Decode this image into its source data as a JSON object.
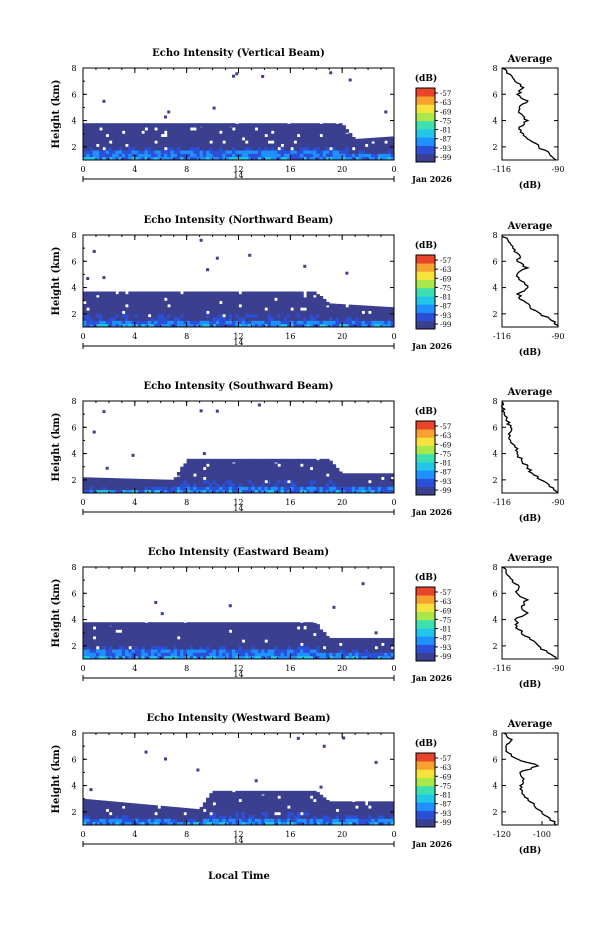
{
  "common": {
    "ylabel": "Height (km)",
    "xlabel": "Local Time",
    "date_label": "Jan 2026",
    "day_label": "14",
    "xticks": [
      "0",
      "4",
      "8",
      "12",
      "16",
      "20",
      "0"
    ],
    "yticks": [
      "2",
      "4",
      "6",
      "8"
    ],
    "colorbar_unit": "(dB)",
    "colorbar_ticks": [
      "-57",
      "-63",
      "-69",
      "-75",
      "-81",
      "-87",
      "-93",
      "-99"
    ],
    "avg_title": "Average",
    "avg_xlabel": "(dB)"
  },
  "colors": {
    "scale": [
      "#3b3f8f",
      "#2b4fd6",
      "#1e90ff",
      "#22c7e8",
      "#3fe0b0",
      "#a8e84a",
      "#f5e23a",
      "#f7a12e",
      "#e8452a"
    ],
    "background": "#ffffff",
    "line": "#000000"
  },
  "chart_data": [
    {
      "type": "heatmap",
      "title": "Echo Intensity (Vertical Beam)",
      "xlim": [
        0,
        24
      ],
      "ylim": [
        1,
        8
      ],
      "layer_top_km": [
        [
          0,
          3.8
        ],
        [
          20,
          3.8
        ],
        [
          21,
          2.6
        ],
        [
          24,
          2.8
        ]
      ],
      "avg_profile": {
        "title": "Average",
        "xticks": [
          "-116",
          "-90"
        ],
        "xlim": [
          -116,
          -90
        ],
        "ylim": [
          1,
          8
        ],
        "height_km": [
          1.0,
          1.5,
          2.0,
          2.5,
          3.0,
          3.5,
          4.0,
          4.5,
          5.0,
          5.5,
          6.0,
          6.5,
          7.0,
          7.5,
          8.0
        ],
        "db": [
          -91,
          -94,
          -99,
          -103,
          -106,
          -108,
          -104,
          -107,
          -108,
          -104,
          -109,
          -106,
          -110,
          -112,
          -116
        ]
      }
    },
    {
      "type": "heatmap",
      "title": "Echo Intensity (Northward Beam)",
      "xlim": [
        0,
        24
      ],
      "ylim": [
        1,
        8
      ],
      "layer_top_km": [
        [
          0,
          3.7
        ],
        [
          18,
          3.7
        ],
        [
          19,
          2.8
        ],
        [
          24,
          2.5
        ]
      ],
      "avg_profile": {
        "title": "Average",
        "xticks": [
          "-116",
          "-90"
        ],
        "xlim": [
          -116,
          -90
        ],
        "ylim": [
          1,
          8
        ],
        "height_km": [
          1.0,
          1.5,
          2.0,
          2.5,
          3.0,
          3.5,
          4.0,
          4.5,
          5.0,
          5.5,
          6.0,
          6.5,
          7.0,
          7.5,
          8.0
        ],
        "db": [
          -90,
          -93,
          -98,
          -103,
          -106,
          -109,
          -104,
          -107,
          -109,
          -104,
          -109,
          -108,
          -111,
          -113,
          -116
        ]
      }
    },
    {
      "type": "heatmap",
      "title": "Echo Intensity (Southward Beam)",
      "xlim": [
        0,
        24
      ],
      "ylim": [
        1,
        8
      ],
      "layer_top_km": [
        [
          0,
          2.2
        ],
        [
          7,
          2.0
        ],
        [
          8,
          3.6
        ],
        [
          19,
          3.6
        ],
        [
          20,
          2.5
        ],
        [
          24,
          2.5
        ]
      ],
      "avg_profile": {
        "title": "Average",
        "xticks": [
          "-116",
          "-90"
        ],
        "xlim": [
          -116,
          -90
        ],
        "ylim": [
          1,
          8
        ],
        "height_km": [
          1.0,
          1.5,
          2.0,
          2.5,
          3.0,
          3.5,
          4.0,
          4.5,
          5.0,
          5.5,
          6.0,
          6.5,
          7.0,
          7.5,
          8.0
        ],
        "db": [
          -90,
          -94,
          -98,
          -102,
          -104,
          -107,
          -109,
          -110,
          -112,
          -113,
          -112,
          -114,
          -115,
          -116,
          -116
        ]
      }
    },
    {
      "type": "heatmap",
      "title": "Echo Intensity (Eastward Beam)",
      "xlim": [
        0,
        24
      ],
      "ylim": [
        1,
        8
      ],
      "layer_top_km": [
        [
          0,
          3.8
        ],
        [
          18,
          3.8
        ],
        [
          19,
          2.6
        ],
        [
          24,
          2.6
        ]
      ],
      "avg_profile": {
        "title": "Average",
        "xticks": [
          "-116",
          "-90"
        ],
        "xlim": [
          -116,
          -90
        ],
        "ylim": [
          1,
          8
        ],
        "height_km": [
          1.0,
          1.5,
          2.0,
          2.5,
          3.0,
          3.5,
          4.0,
          4.5,
          5.0,
          5.5,
          6.0,
          6.5,
          7.0,
          7.5,
          8.0
        ],
        "db": [
          -91,
          -95,
          -99,
          -103,
          -107,
          -109,
          -110,
          -104,
          -107,
          -104,
          -109,
          -108,
          -111,
          -114,
          -116
        ]
      }
    },
    {
      "type": "heatmap",
      "title": "Echo Intensity (Westward Beam)",
      "xlim": [
        0,
        24
      ],
      "ylim": [
        1,
        8
      ],
      "layer_top_km": [
        [
          0,
          3.0
        ],
        [
          9,
          2.2
        ],
        [
          10,
          3.6
        ],
        [
          18,
          3.6
        ],
        [
          19,
          2.8
        ],
        [
          24,
          2.8
        ]
      ],
      "avg_profile": {
        "title": "Average",
        "xticks": [
          "-120",
          "-100"
        ],
        "xlim": [
          -120,
          -92
        ],
        "ylim": [
          1,
          8
        ],
        "height_km": [
          1.0,
          1.5,
          2.0,
          2.5,
          3.0,
          3.5,
          4.0,
          4.5,
          5.0,
          5.5,
          6.0,
          6.5,
          7.0,
          7.5,
          8.0
        ],
        "db": [
          -93,
          -96,
          -100,
          -104,
          -107,
          -110,
          -111,
          -109,
          -111,
          -102,
          -112,
          -117,
          -118,
          -115,
          -119
        ]
      }
    }
  ]
}
